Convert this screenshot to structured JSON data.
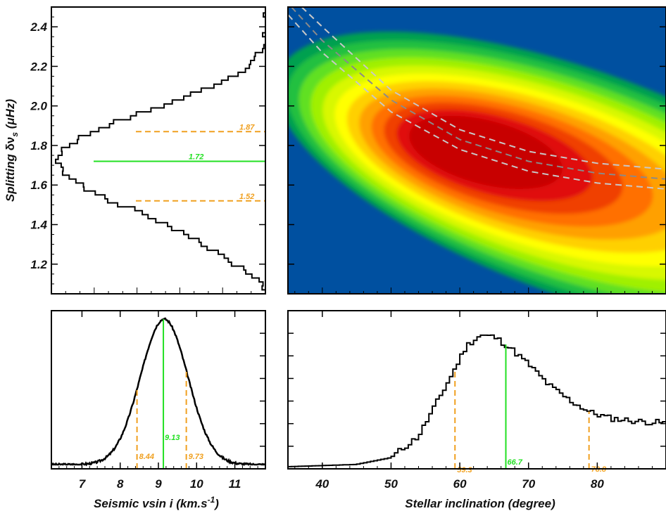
{
  "colors": {
    "background": "#0050a0",
    "green": "#22e022",
    "orange": "#f0a020",
    "grey_dash": "#c8c8c8"
  },
  "chart_data": [
    {
      "id": "split-hist",
      "type": "histogram-horizontal",
      "ylabel_prefix": "Splitting ",
      "ylabel_mid": "δν",
      "ylabel_sub": "s",
      "ylabel_suffix": " (μHz)",
      "ylim": [
        1.05,
        2.5
      ],
      "yticks": [
        "1.2",
        "1.4",
        "1.6",
        "1.8",
        "2.0",
        "2.2",
        "2.4"
      ],
      "ytick_values": [
        1.2,
        1.4,
        1.6,
        1.8,
        2.0,
        2.2,
        2.4
      ],
      "median": 1.72,
      "median_label": "1.72",
      "lower": 1.52,
      "lower_label": "1.52",
      "upper": 1.87,
      "upper_label": "1.87",
      "bins": [
        1.06,
        1.12,
        1.18,
        1.24,
        1.3,
        1.36,
        1.42,
        1.48,
        1.54,
        1.6,
        1.66,
        1.72,
        1.78,
        1.84,
        1.9,
        1.96,
        2.02,
        2.08,
        2.14,
        2.2,
        2.26,
        2.32
      ],
      "counts": [
        0,
        0.04,
        0.12,
        0.2,
        0.3,
        0.4,
        0.52,
        0.64,
        0.78,
        0.88,
        0.96,
        1.0,
        0.97,
        0.88,
        0.76,
        0.6,
        0.44,
        0.3,
        0.18,
        0.08,
        0.03,
        0
      ]
    },
    {
      "id": "density-map",
      "type": "heatmap",
      "xlim": [
        35,
        90
      ],
      "ylim": [
        1.05,
        2.5
      ],
      "peak": [
        62.5,
        1.78
      ],
      "level_colors": [
        "#00a050",
        "#20c040",
        "#60e020",
        "#a0f000",
        "#d8f800",
        "#ffff00",
        "#ffd000",
        "#ffa000",
        "#ff7000",
        "#f04000",
        "#e01010",
        "#c80000"
      ],
      "curves_center": [
        [
          35.5,
          2.5
        ],
        [
          40,
          2.33
        ],
        [
          50,
          2.03
        ],
        [
          60,
          1.83
        ],
        [
          70,
          1.72
        ],
        [
          80,
          1.66
        ],
        [
          90,
          1.63
        ]
      ],
      "curves_lower": [
        [
          37,
          2.5
        ],
        [
          40,
          2.4
        ],
        [
          50,
          2.08
        ],
        [
          60,
          1.88
        ],
        [
          70,
          1.77
        ],
        [
          80,
          1.71
        ],
        [
          90,
          1.68
        ]
      ],
      "curves_upper": [
        [
          34,
          2.5
        ],
        [
          40,
          2.27
        ],
        [
          50,
          1.97
        ],
        [
          60,
          1.78
        ],
        [
          70,
          1.67
        ],
        [
          80,
          1.61
        ],
        [
          90,
          1.58
        ]
      ]
    },
    {
      "id": "vsini-hist",
      "type": "histogram",
      "xlabel": "Seismic vsin i (km.s",
      "xlabel_sup": "-1",
      "xlabel_end": ")",
      "xlim": [
        6.2,
        11.8
      ],
      "xticks": [
        "7",
        "8",
        "9",
        "10",
        "11"
      ],
      "xtick_values": [
        7,
        8,
        9,
        10,
        11
      ],
      "median": 9.13,
      "median_label": "9.13",
      "lower": 8.44,
      "lower_label": "8.44",
      "upper": 9.73,
      "upper_label": "9.73",
      "mean": 9.15,
      "sigma": 0.62
    },
    {
      "id": "incl-hist",
      "type": "histogram",
      "xlabel": "Stellar inclination (degree)",
      "xlim": [
        35,
        90
      ],
      "xticks": [
        "40",
        "50",
        "60",
        "70",
        "80"
      ],
      "xtick_values": [
        40,
        50,
        60,
        70,
        80
      ],
      "median": 66.7,
      "median_label": "66.7",
      "lower": 59.3,
      "lower_label": "59.3",
      "upper": 78.8,
      "upper_label": "78.8",
      "profile": [
        [
          35,
          0
        ],
        [
          45,
          0.015
        ],
        [
          50,
          0.06
        ],
        [
          54,
          0.2
        ],
        [
          57,
          0.45
        ],
        [
          59,
          0.62
        ],
        [
          61,
          0.8
        ],
        [
          63,
          0.87
        ],
        [
          65,
          0.86
        ],
        [
          67,
          0.8
        ],
        [
          70,
          0.68
        ],
        [
          73,
          0.54
        ],
        [
          76,
          0.44
        ],
        [
          79,
          0.36
        ],
        [
          82,
          0.32
        ],
        [
          86,
          0.3
        ],
        [
          90,
          0.29
        ]
      ]
    }
  ]
}
